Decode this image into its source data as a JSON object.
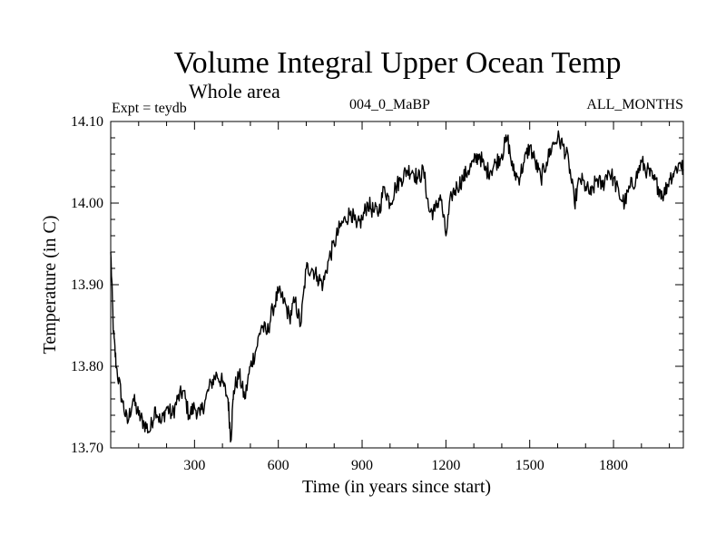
{
  "chart_data": {
    "type": "line",
    "title": "Volume Integral Upper Ocean Temp",
    "subtitle": "Whole area",
    "experiment_label": "Expt = teydb",
    "run_label": "004_0_MaBP",
    "months_label": "ALL_MONTHS",
    "xlabel": "Time (in years since start)",
    "ylabel": "Temperature (in C)",
    "xlim": [
      0,
      2050
    ],
    "ylim": [
      13.7,
      14.1
    ],
    "x_ticks": [
      300,
      600,
      900,
      1200,
      1500,
      1800
    ],
    "y_ticks": [
      13.7,
      13.8,
      13.9,
      14.0,
      14.1
    ],
    "y_tick_labels": [
      "13.70",
      "13.80",
      "13.90",
      "14.00",
      "14.10"
    ],
    "grid": false,
    "series": [
      {
        "name": "Volume integral upper ocean temperature",
        "color": "#000000",
        "x": [
          0,
          10,
          20,
          40,
          60,
          80,
          100,
          120,
          140,
          160,
          180,
          200,
          220,
          240,
          260,
          280,
          300,
          320,
          340,
          360,
          380,
          400,
          420,
          430,
          440,
          460,
          480,
          500,
          520,
          540,
          560,
          580,
          600,
          620,
          640,
          660,
          680,
          700,
          720,
          740,
          760,
          780,
          800,
          820,
          840,
          860,
          880,
          900,
          920,
          940,
          960,
          980,
          1000,
          1020,
          1040,
          1060,
          1080,
          1100,
          1120,
          1140,
          1160,
          1180,
          1200,
          1220,
          1240,
          1260,
          1280,
          1300,
          1320,
          1340,
          1360,
          1380,
          1400,
          1420,
          1440,
          1460,
          1480,
          1500,
          1520,
          1540,
          1560,
          1580,
          1600,
          1620,
          1640,
          1660,
          1680,
          1700,
          1720,
          1740,
          1760,
          1780,
          1800,
          1820,
          1840,
          1860,
          1880,
          1900,
          1920,
          1940,
          1960,
          1980,
          2000,
          2020,
          2040,
          2050
        ],
        "values": [
          13.94,
          13.84,
          13.8,
          13.76,
          13.73,
          13.76,
          13.74,
          13.73,
          13.72,
          13.75,
          13.73,
          13.75,
          13.74,
          13.76,
          13.77,
          13.74,
          13.75,
          13.74,
          13.76,
          13.78,
          13.79,
          13.78,
          13.76,
          13.71,
          13.77,
          13.79,
          13.76,
          13.8,
          13.82,
          13.85,
          13.84,
          13.87,
          13.89,
          13.88,
          13.86,
          13.88,
          13.85,
          13.92,
          13.92,
          13.91,
          13.9,
          13.93,
          13.95,
          13.97,
          13.98,
          13.99,
          13.97,
          13.98,
          14.0,
          13.99,
          13.99,
          14.02,
          14.0,
          14.02,
          14.03,
          14.04,
          14.04,
          14.03,
          14.04,
          13.99,
          13.99,
          14.01,
          13.96,
          14.01,
          14.02,
          14.03,
          14.04,
          14.05,
          14.06,
          14.04,
          14.04,
          14.05,
          14.06,
          14.08,
          14.04,
          14.03,
          14.05,
          14.07,
          14.05,
          14.03,
          14.05,
          14.07,
          14.08,
          14.07,
          14.05,
          14.0,
          14.03,
          14.02,
          14.01,
          14.03,
          14.02,
          14.04,
          14.03,
          14.01,
          14.0,
          14.02,
          14.03,
          14.05,
          14.04,
          14.03,
          14.02,
          14.01,
          14.03,
          14.04,
          14.05,
          14.04
        ]
      }
    ]
  }
}
